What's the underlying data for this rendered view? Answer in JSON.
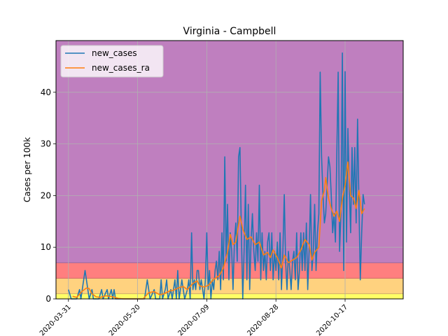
{
  "chart_data": {
    "type": "line",
    "title": "Virginia - Campbell",
    "xlabel": "",
    "ylabel": "Cases per 100k",
    "xlim": [
      "2020-03-22",
      "2020-11-28"
    ],
    "ylim": [
      0,
      50
    ],
    "x_ticks": [
      "2020-03-31",
      "2020-05-20",
      "2020-07-09",
      "2020-08-28",
      "2020-10-17"
    ],
    "y_ticks": [
      0,
      10,
      20,
      30,
      40
    ],
    "grid": true,
    "legend_position": "upper left",
    "bands": [
      {
        "from": 0,
        "to": 1,
        "color": "#ffff66"
      },
      {
        "from": 1,
        "to": 4,
        "color": "#ffd27f"
      },
      {
        "from": 4,
        "to": 7,
        "color": "#ff7f7f"
      },
      {
        "from": 7,
        "to": 50,
        "color": "#bf7fbf"
      }
    ],
    "series": [
      {
        "name": "new_cases",
        "color": "#1f77b4",
        "points": [
          [
            "2020-03-31",
            1.8
          ],
          [
            "2020-04-02",
            0
          ],
          [
            "2020-04-06",
            0
          ],
          [
            "2020-04-08",
            1.8
          ],
          [
            "2020-04-09",
            0
          ],
          [
            "2020-04-10",
            1.8
          ],
          [
            "2020-04-12",
            5.5
          ],
          [
            "2020-04-14",
            1.8
          ],
          [
            "2020-04-15",
            0
          ],
          [
            "2020-04-17",
            1.8
          ],
          [
            "2020-04-18",
            0
          ],
          [
            "2020-04-22",
            0
          ],
          [
            "2020-04-24",
            1.8
          ],
          [
            "2020-04-25",
            0
          ],
          [
            "2020-04-28",
            1.8
          ],
          [
            "2020-04-29",
            0
          ],
          [
            "2020-05-01",
            1.8
          ],
          [
            "2020-05-02",
            0
          ],
          [
            "2020-05-03",
            1.8
          ],
          [
            "2020-05-04",
            0
          ],
          [
            "2020-05-25",
            0
          ],
          [
            "2020-05-27",
            3.7
          ],
          [
            "2020-05-29",
            0
          ],
          [
            "2020-06-01",
            1.8
          ],
          [
            "2020-06-02",
            0
          ],
          [
            "2020-06-05",
            0
          ],
          [
            "2020-06-06",
            3.7
          ],
          [
            "2020-06-07",
            0
          ],
          [
            "2020-06-09",
            1.8
          ],
          [
            "2020-06-10",
            3.7
          ],
          [
            "2020-06-11",
            0
          ],
          [
            "2020-06-13",
            1.8
          ],
          [
            "2020-06-14",
            0
          ],
          [
            "2020-06-16",
            3.7
          ],
          [
            "2020-06-17",
            0
          ],
          [
            "2020-06-18",
            5.5
          ],
          [
            "2020-06-19",
            0
          ],
          [
            "2020-06-21",
            3.7
          ],
          [
            "2020-06-22",
            1.8
          ],
          [
            "2020-06-23",
            0
          ],
          [
            "2020-06-25",
            1.8
          ],
          [
            "2020-06-26",
            3.7
          ],
          [
            "2020-06-27",
            0
          ],
          [
            "2020-06-28",
            12.8
          ],
          [
            "2020-06-29",
            1.8
          ],
          [
            "2020-06-30",
            3.7
          ],
          [
            "2020-07-01",
            1.8
          ],
          [
            "2020-07-02",
            5.5
          ],
          [
            "2020-07-03",
            5.5
          ],
          [
            "2020-07-04",
            1.8
          ],
          [
            "2020-07-05",
            3.7
          ],
          [
            "2020-07-06",
            1.8
          ],
          [
            "2020-07-07",
            0
          ],
          [
            "2020-07-08",
            3.7
          ],
          [
            "2020-07-09",
            12.8
          ],
          [
            "2020-07-10",
            1.8
          ],
          [
            "2020-07-11",
            5.5
          ],
          [
            "2020-07-12",
            0
          ],
          [
            "2020-07-13",
            3.7
          ],
          [
            "2020-07-14",
            1.8
          ],
          [
            "2020-07-15",
            5.5
          ],
          [
            "2020-07-16",
            7.3
          ],
          [
            "2020-07-17",
            3.7
          ],
          [
            "2020-07-18",
            9.2
          ],
          [
            "2020-07-19",
            1.8
          ],
          [
            "2020-07-20",
            12.8
          ],
          [
            "2020-07-21",
            3.7
          ],
          [
            "2020-07-22",
            27.5
          ],
          [
            "2020-07-23",
            7.3
          ],
          [
            "2020-07-24",
            18.3
          ],
          [
            "2020-07-25",
            3.7
          ],
          [
            "2020-07-26",
            12.8
          ],
          [
            "2020-07-27",
            9.2
          ],
          [
            "2020-07-28",
            1.8
          ],
          [
            "2020-07-29",
            11.0
          ],
          [
            "2020-07-30",
            14.7
          ],
          [
            "2020-07-31",
            7.3
          ],
          [
            "2020-08-01",
            27.5
          ],
          [
            "2020-08-02",
            29.3
          ],
          [
            "2020-08-03",
            12.8
          ],
          [
            "2020-08-04",
            0
          ],
          [
            "2020-08-05",
            9.2
          ],
          [
            "2020-08-06",
            22.0
          ],
          [
            "2020-08-07",
            3.7
          ],
          [
            "2020-08-08",
            18.3
          ],
          [
            "2020-08-09",
            1.8
          ],
          [
            "2020-08-10",
            11.0
          ],
          [
            "2020-08-11",
            16.5
          ],
          [
            "2020-08-12",
            9.2
          ],
          [
            "2020-08-13",
            5.5
          ],
          [
            "2020-08-14",
            12.8
          ],
          [
            "2020-08-15",
            7.3
          ],
          [
            "2020-08-16",
            22.0
          ],
          [
            "2020-08-17",
            3.7
          ],
          [
            "2020-08-18",
            12.8
          ],
          [
            "2020-08-19",
            5.5
          ],
          [
            "2020-08-20",
            9.2
          ],
          [
            "2020-08-21",
            3.7
          ],
          [
            "2020-08-22",
            11.0
          ],
          [
            "2020-08-23",
            12.8
          ],
          [
            "2020-08-24",
            5.5
          ],
          [
            "2020-08-25",
            12.8
          ],
          [
            "2020-08-26",
            3.7
          ],
          [
            "2020-08-27",
            9.2
          ],
          [
            "2020-08-28",
            5.5
          ],
          [
            "2020-08-29",
            11.0
          ],
          [
            "2020-08-30",
            3.7
          ],
          [
            "2020-08-31",
            12.8
          ],
          [
            "2020-09-01",
            1.8
          ],
          [
            "2020-09-02",
            9.2
          ],
          [
            "2020-09-03",
            20.2
          ],
          [
            "2020-09-04",
            7.3
          ],
          [
            "2020-09-05",
            1.8
          ],
          [
            "2020-09-06",
            9.2
          ],
          [
            "2020-09-07",
            5.5
          ],
          [
            "2020-09-08",
            1.8
          ],
          [
            "2020-09-09",
            7.3
          ],
          [
            "2020-09-10",
            9.2
          ],
          [
            "2020-09-11",
            3.7
          ],
          [
            "2020-09-12",
            12.8
          ],
          [
            "2020-09-13",
            1.8
          ],
          [
            "2020-09-14",
            5.5
          ],
          [
            "2020-09-15",
            12.8
          ],
          [
            "2020-09-16",
            5.5
          ],
          [
            "2020-09-17",
            12.8
          ],
          [
            "2020-09-18",
            5.5
          ],
          [
            "2020-09-19",
            14.7
          ],
          [
            "2020-09-20",
            1.8
          ],
          [
            "2020-09-21",
            9.2
          ],
          [
            "2020-09-22",
            20.2
          ],
          [
            "2020-09-23",
            5.5
          ],
          [
            "2020-09-24",
            9.2
          ],
          [
            "2020-09-25",
            18.3
          ],
          [
            "2020-09-26",
            5.5
          ],
          [
            "2020-09-27",
            12.8
          ],
          [
            "2020-09-28",
            16.5
          ],
          [
            "2020-09-29",
            43.9
          ],
          [
            "2020-09-30",
            27.5
          ],
          [
            "2020-10-01",
            20.2
          ],
          [
            "2020-10-02",
            14.7
          ],
          [
            "2020-10-03",
            16.5
          ],
          [
            "2020-10-04",
            22.0
          ],
          [
            "2020-10-05",
            27.5
          ],
          [
            "2020-10-06",
            25.6
          ],
          [
            "2020-10-07",
            20.2
          ],
          [
            "2020-10-08",
            12.8
          ],
          [
            "2020-10-09",
            16.5
          ],
          [
            "2020-10-10",
            11.0
          ],
          [
            "2020-10-11",
            27.5
          ],
          [
            "2020-10-12",
            43.9
          ],
          [
            "2020-10-13",
            9.2
          ],
          [
            "2020-10-14",
            16.5
          ],
          [
            "2020-10-15",
            47.6
          ],
          [
            "2020-10-16",
            5.5
          ],
          [
            "2020-10-17",
            44.0
          ],
          [
            "2020-10-18",
            11.0
          ],
          [
            "2020-10-19",
            33.0
          ],
          [
            "2020-10-20",
            22.0
          ],
          [
            "2020-10-21",
            12.8
          ],
          [
            "2020-10-22",
            29.3
          ],
          [
            "2020-10-23",
            18.3
          ],
          [
            "2020-10-24",
            29.3
          ],
          [
            "2020-10-25",
            14.7
          ],
          [
            "2020-10-26",
            34.8
          ],
          [
            "2020-10-27",
            18.3
          ],
          [
            "2020-10-28",
            3.7
          ],
          [
            "2020-10-29",
            12.8
          ],
          [
            "2020-10-30",
            20.2
          ],
          [
            "2020-10-31",
            18.3
          ]
        ]
      },
      {
        "name": "new_cases_ra",
        "color": "#ff7f0e",
        "points": [
          [
            "2020-04-03",
            0.5
          ],
          [
            "2020-04-06",
            0.3
          ],
          [
            "2020-04-10",
            1.5
          ],
          [
            "2020-04-13",
            2.1
          ],
          [
            "2020-04-15",
            2.0
          ],
          [
            "2020-04-17",
            1.0
          ],
          [
            "2020-04-20",
            0.4
          ],
          [
            "2020-04-23",
            0.3
          ],
          [
            "2020-04-27",
            0.6
          ],
          [
            "2020-05-02",
            0.4
          ],
          [
            "2020-05-06",
            0.1
          ],
          [
            "2020-05-10",
            0
          ],
          [
            "2020-05-24",
            0
          ],
          [
            "2020-05-28",
            1.2
          ],
          [
            "2020-06-01",
            1.4
          ],
          [
            "2020-06-05",
            0.8
          ],
          [
            "2020-06-08",
            1.0
          ],
          [
            "2020-06-12",
            1.5
          ],
          [
            "2020-06-15",
            1.7
          ],
          [
            "2020-06-19",
            2.2
          ],
          [
            "2020-06-22",
            2.4
          ],
          [
            "2020-06-25",
            1.8
          ],
          [
            "2020-06-29",
            3.0
          ],
          [
            "2020-07-02",
            3.5
          ],
          [
            "2020-07-04",
            2.5
          ],
          [
            "2020-07-07",
            2.3
          ],
          [
            "2020-07-10",
            2.6
          ],
          [
            "2020-07-13",
            3.5
          ],
          [
            "2020-07-15",
            4.0
          ],
          [
            "2020-07-18",
            4.5
          ],
          [
            "2020-07-21",
            6.0
          ],
          [
            "2020-07-24",
            9.0
          ],
          [
            "2020-07-26",
            12.5
          ],
          [
            "2020-07-28",
            10.5
          ],
          [
            "2020-07-30",
            11.0
          ],
          [
            "2020-08-02",
            16.0
          ],
          [
            "2020-08-04",
            13.5
          ],
          [
            "2020-08-07",
            11.5
          ],
          [
            "2020-08-10",
            12.0
          ],
          [
            "2020-08-13",
            10.5
          ],
          [
            "2020-08-16",
            11.0
          ],
          [
            "2020-08-19",
            8.5
          ],
          [
            "2020-08-22",
            9.0
          ],
          [
            "2020-08-24",
            8.0
          ],
          [
            "2020-08-26",
            9.5
          ],
          [
            "2020-08-29",
            8.0
          ],
          [
            "2020-09-01",
            6.0
          ],
          [
            "2020-09-03",
            8.5
          ],
          [
            "2020-09-06",
            7.0
          ],
          [
            "2020-09-09",
            7.5
          ],
          [
            "2020-09-12",
            8.0
          ],
          [
            "2020-09-15",
            9.5
          ],
          [
            "2020-09-18",
            11.5
          ],
          [
            "2020-09-21",
            10.5
          ],
          [
            "2020-09-23",
            7.5
          ],
          [
            "2020-09-25",
            9.0
          ],
          [
            "2020-09-28",
            10.0
          ],
          [
            "2020-09-30",
            19.0
          ],
          [
            "2020-10-02",
            21.0
          ],
          [
            "2020-10-03",
            23.5
          ],
          [
            "2020-10-05",
            19.5
          ],
          [
            "2020-10-07",
            17.5
          ],
          [
            "2020-10-09",
            16.0
          ],
          [
            "2020-10-11",
            17.0
          ],
          [
            "2020-10-13",
            15.0
          ],
          [
            "2020-10-15",
            19.5
          ],
          [
            "2020-10-17",
            22.0
          ],
          [
            "2020-10-19",
            26.5
          ],
          [
            "2020-10-21",
            20.0
          ],
          [
            "2020-10-23",
            19.5
          ],
          [
            "2020-10-25",
            17.5
          ],
          [
            "2020-10-27",
            21.0
          ],
          [
            "2020-10-29",
            16.5
          ],
          [
            "2020-10-31",
            17.5
          ]
        ]
      }
    ]
  }
}
